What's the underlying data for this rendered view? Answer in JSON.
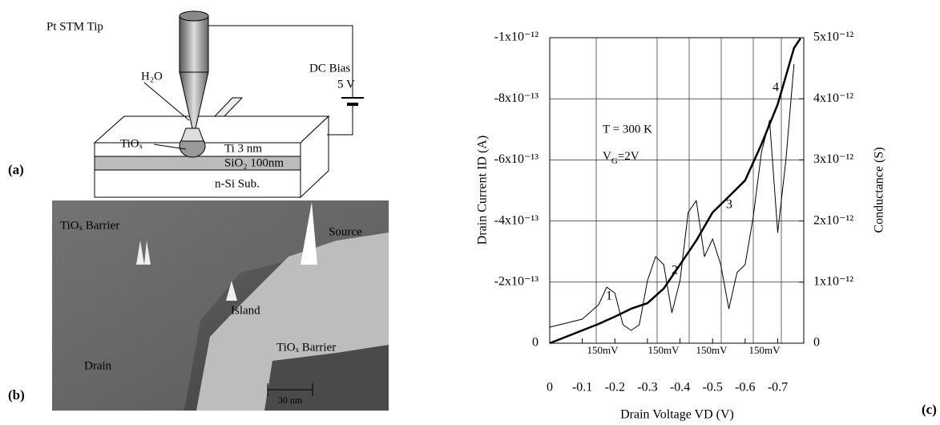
{
  "panel_a": {
    "label": "(a)",
    "tip": "Pt  STM Tip",
    "bias": "DC Bias",
    "bias_voltage": "5 V",
    "water": "H₂O",
    "oxide": "TiOₓ",
    "layers": [
      "Ti  3 nm",
      "SiO₂ 100nm",
      "n-Si Sub."
    ]
  },
  "panel_b": {
    "label": "(b)",
    "labels": [
      "TiOₓ Barrier",
      "Source",
      "Island",
      "TiOₓ Barrier",
      "Drain"
    ],
    "scale_bar": "30 nm"
  },
  "chart_data": {
    "type": "line",
    "panel_label": "(c)",
    "xlabel": "Drain Voltage  VD (V)",
    "ylabel": "Drain Current ID (A)",
    "y2label": "Conductance  (S)",
    "temperature": "T = 300 K",
    "gate_voltage": [
      "V",
      "G",
      "=2V"
    ],
    "peak_labels": [
      "1",
      "2",
      "3",
      "4"
    ],
    "spacing_labels": [
      "150mV",
      "150mV",
      "150mV",
      "150mV"
    ],
    "xlim": [
      0,
      -0.78
    ],
    "xticks": [
      0,
      -0.1,
      -0.2,
      -0.3,
      -0.4,
      -0.5,
      -0.6,
      -0.7
    ],
    "ylim": [
      0,
      -1e-12
    ],
    "yticks": [
      0,
      {
        "value": -2e-13,
        "label": "-2x10⁻¹³"
      },
      {
        "value": -4e-13,
        "label": "-4x10⁻¹³"
      },
      {
        "value": -6e-13,
        "label": "-6x10⁻¹³"
      },
      {
        "value": -8e-13,
        "label": "-8x10⁻¹³"
      },
      {
        "value": -1e-12,
        "label": "-1x10⁻¹²"
      }
    ],
    "y2lim": [
      0,
      5e-12
    ],
    "y2ticks": [
      0,
      {
        "value": 1e-12,
        "label": "1x10⁻¹²"
      },
      {
        "value": 2e-12,
        "label": "2x10⁻¹²"
      },
      {
        "value": 3e-12,
        "label": "3x10⁻¹²"
      },
      {
        "value": 4e-12,
        "label": "4x10⁻¹²"
      },
      {
        "value": 5e-12,
        "label": "5x10⁻¹²"
      }
    ],
    "grid": true,
    "series": [
      {
        "color": "#000000",
        "line_width": 2.5,
        "axis": "y",
        "x": [
          0,
          -0.05,
          -0.1,
          -0.15,
          -0.2,
          -0.25,
          -0.3,
          -0.35,
          -0.4,
          -0.45,
          -0.5,
          -0.55,
          -0.6,
          -0.65,
          -0.7,
          -0.75,
          -0.77
        ],
        "values": [
          0,
          -2.1e-14,
          -4.2e-14,
          -6.3e-14,
          -8.7e-14,
          -1.13e-13,
          -1.31e-13,
          -1.79e-13,
          -2.57e-13,
          -3.36e-13,
          -4.28e-13,
          -4.8e-13,
          -5.33e-13,
          -6.51e-13,
          -7.82e-13,
          -9.66e-13,
          -9.98e-13
        ]
      },
      {
        "color": "#000000",
        "line_width": 1,
        "axis": "y2",
        "x": [
          0,
          -0.05,
          -0.1,
          -0.15,
          -0.175,
          -0.2,
          -0.225,
          -0.25,
          -0.275,
          -0.3,
          -0.325,
          -0.35,
          -0.375,
          -0.4,
          -0.425,
          -0.45,
          -0.475,
          -0.5,
          -0.525,
          -0.55,
          -0.575,
          -0.6,
          -0.625,
          -0.65,
          -0.675,
          -0.7,
          -0.725,
          -0.75
        ],
        "values": [
          2.62e-13,
          3.28e-13,
          3.94e-13,
          6.3e-13,
          9.18e-13,
          8.2e-13,
          3.02e-13,
          2.1e-13,
          3.02e-13,
          1.023e-12,
          1.417e-12,
          1.286e-12,
          4.99e-13,
          1.023e-12,
          2.139e-12,
          2.335e-12,
          1.417e-12,
          1.706e-12,
          1.286e-12,
          5.64e-13,
          1.155e-12,
          1.286e-12,
          2.073e-12,
          3.123e-12,
          3.647e-12,
          1.811e-12,
          2.991e-12,
          4.566e-12
        ]
      }
    ]
  }
}
